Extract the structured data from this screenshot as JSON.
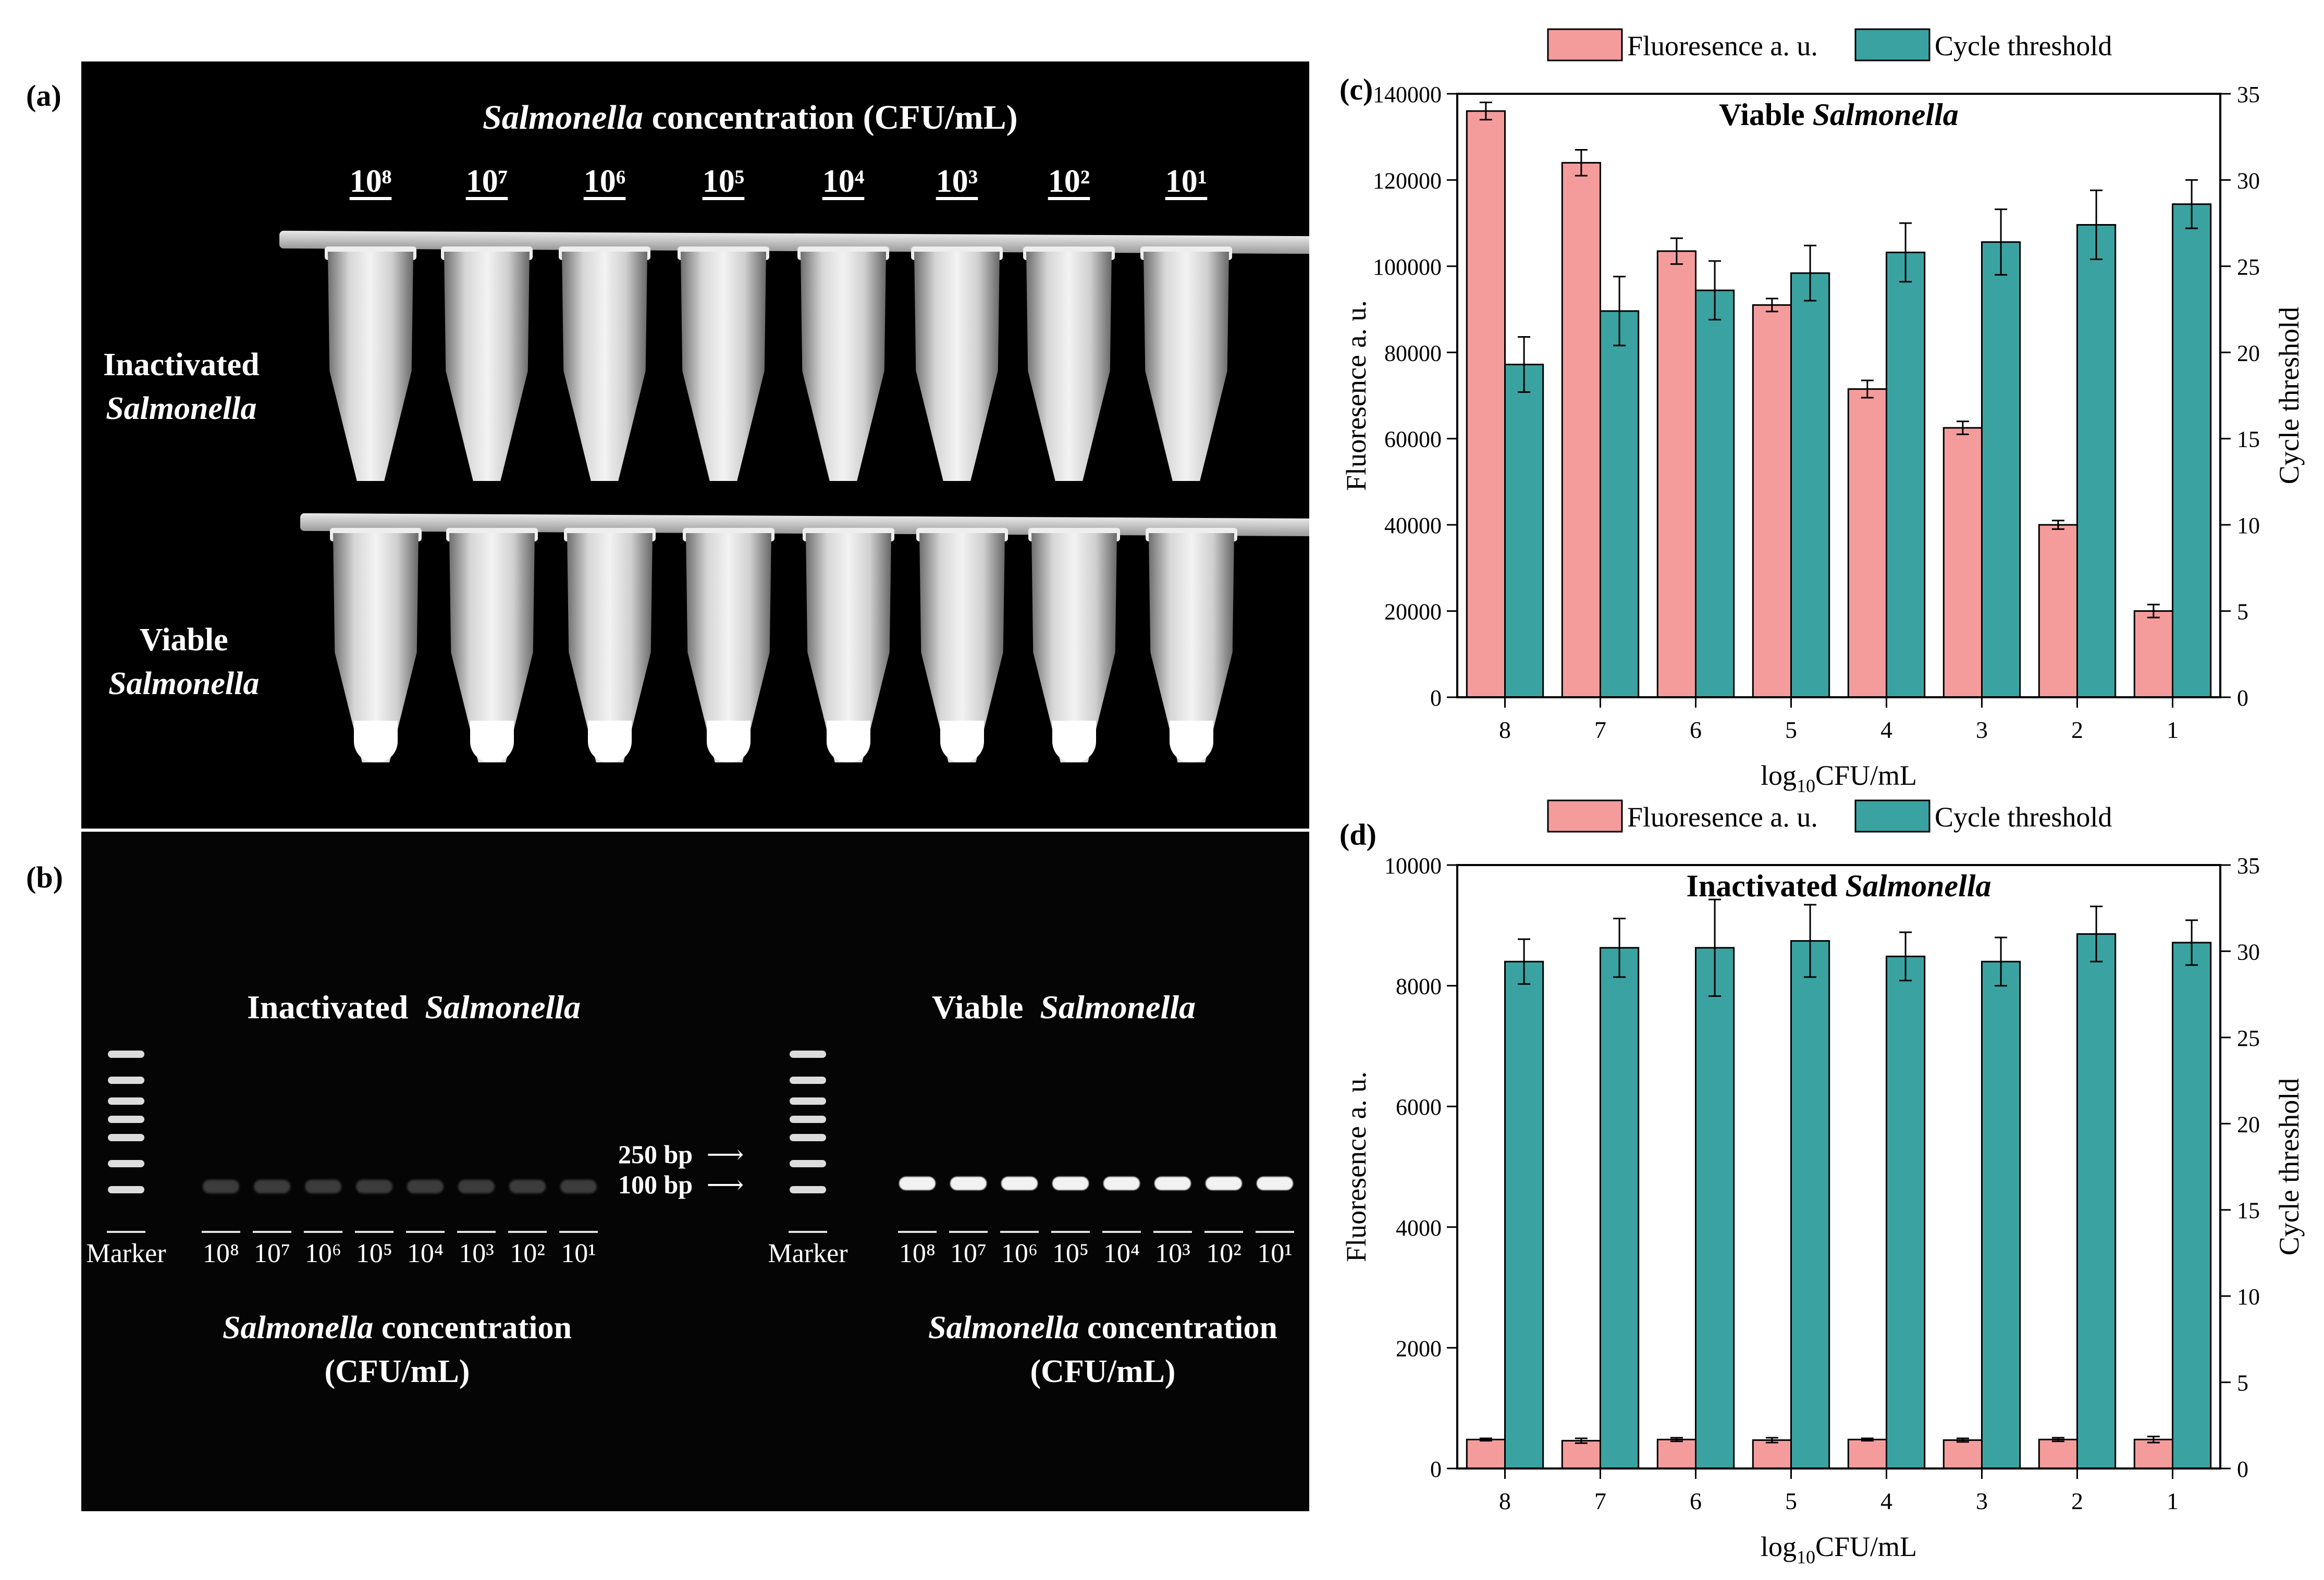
{
  "panel_labels": {
    "a": "(a)",
    "b": "(b)",
    "c": "(c)",
    "d": "(d)"
  },
  "panel_a": {
    "header_italic": "Salmonella",
    "header_rest": " concentration (CFU/mL)",
    "concentrations": [
      "10⁸",
      "10⁷",
      "10⁶",
      "10⁵",
      "10⁴",
      "10³",
      "10²",
      "10¹"
    ],
    "row1_line1": "Inactivated",
    "row1_line2": "Salmonella",
    "row2_line1": "Viable",
    "row2_line2": "Salmonella"
  },
  "panel_b": {
    "left_title_1": "Inactivated",
    "left_title_2": "Salmonella",
    "right_title_1": "Viable",
    "right_title_2": "Salmonella",
    "marker_label": "Marker",
    "lane_labels": [
      "10⁸",
      "10⁷",
      "10⁶",
      "10⁵",
      "10⁴",
      "10³",
      "10²",
      "10¹"
    ],
    "bp_250": "250 bp",
    "bp_100": "100 bp",
    "arrow": "⟶",
    "caption_italic": "Salmonella",
    "caption_rest": " concentration",
    "caption_line2": "(CFU/mL)"
  },
  "chart_data": [
    {
      "type": "bar",
      "title_prefix": "Viable",
      "title_italic": "Salmonella",
      "categories": [
        "8",
        "7",
        "6",
        "5",
        "4",
        "3",
        "2",
        "1"
      ],
      "xlabel_main": "log",
      "xlabel_sub": "10",
      "xlabel_rest": "CFU/mL",
      "ylabel": "Fluoresence a. u.",
      "y2label": "Cycle threshold",
      "ylim": [
        0,
        140000
      ],
      "yticks": [
        "0",
        "20000",
        "40000",
        "60000",
        "80000",
        "100000",
        "120000",
        "140000"
      ],
      "y2lim": [
        0,
        35
      ],
      "y2ticks": [
        "0",
        "5",
        "10",
        "15",
        "20",
        "25",
        "30",
        "35"
      ],
      "legend_placement": "top",
      "series": [
        {
          "name": "Fluoresence a. u.",
          "axis": "left",
          "color": "#F49C9C",
          "values": [
            136000,
            124000,
            103500,
            91000,
            71500,
            62500,
            40000,
            20000
          ],
          "errors": [
            2000,
            3000,
            3000,
            1500,
            2000,
            1500,
            1000,
            1500
          ]
        },
        {
          "name": "Cycle threshold",
          "axis": "right",
          "color": "#3AA3A1",
          "values": [
            19.3,
            22.4,
            23.6,
            24.6,
            25.8,
            26.4,
            27.4,
            28.6
          ],
          "errors": [
            1.6,
            2.0,
            1.7,
            1.6,
            1.7,
            1.9,
            2.0,
            1.4
          ]
        }
      ]
    },
    {
      "type": "bar",
      "title_prefix": "Inactivated",
      "title_italic": "Salmonella",
      "categories": [
        "8",
        "7",
        "6",
        "5",
        "4",
        "3",
        "2",
        "1"
      ],
      "xlabel_main": "log",
      "xlabel_sub": "10",
      "xlabel_rest": "CFU/mL",
      "ylabel": "Fluoresence a. u.",
      "y2label": "Cycle threshold",
      "ylim": [
        0,
        10000
      ],
      "yticks": [
        "0",
        "2000",
        "4000",
        "6000",
        "8000",
        "10000"
      ],
      "y2lim": [
        0,
        35
      ],
      "y2ticks": [
        "0",
        "5",
        "10",
        "15",
        "20",
        "25",
        "30",
        "35"
      ],
      "legend_placement": "top",
      "series": [
        {
          "name": "Fluoresence a. u.",
          "axis": "left",
          "color": "#F49C9C",
          "values": [
            480,
            460,
            480,
            470,
            480,
            470,
            480,
            480
          ],
          "errors": [
            20,
            40,
            30,
            40,
            20,
            30,
            30,
            50
          ]
        },
        {
          "name": "Cycle threshold",
          "axis": "right",
          "color": "#3AA3A1",
          "values": [
            29.4,
            30.2,
            30.2,
            30.6,
            29.7,
            29.4,
            31.0,
            30.5
          ],
          "errors": [
            1.3,
            1.7,
            2.8,
            2.1,
            1.4,
            1.4,
            1.6,
            1.3
          ]
        }
      ]
    }
  ]
}
